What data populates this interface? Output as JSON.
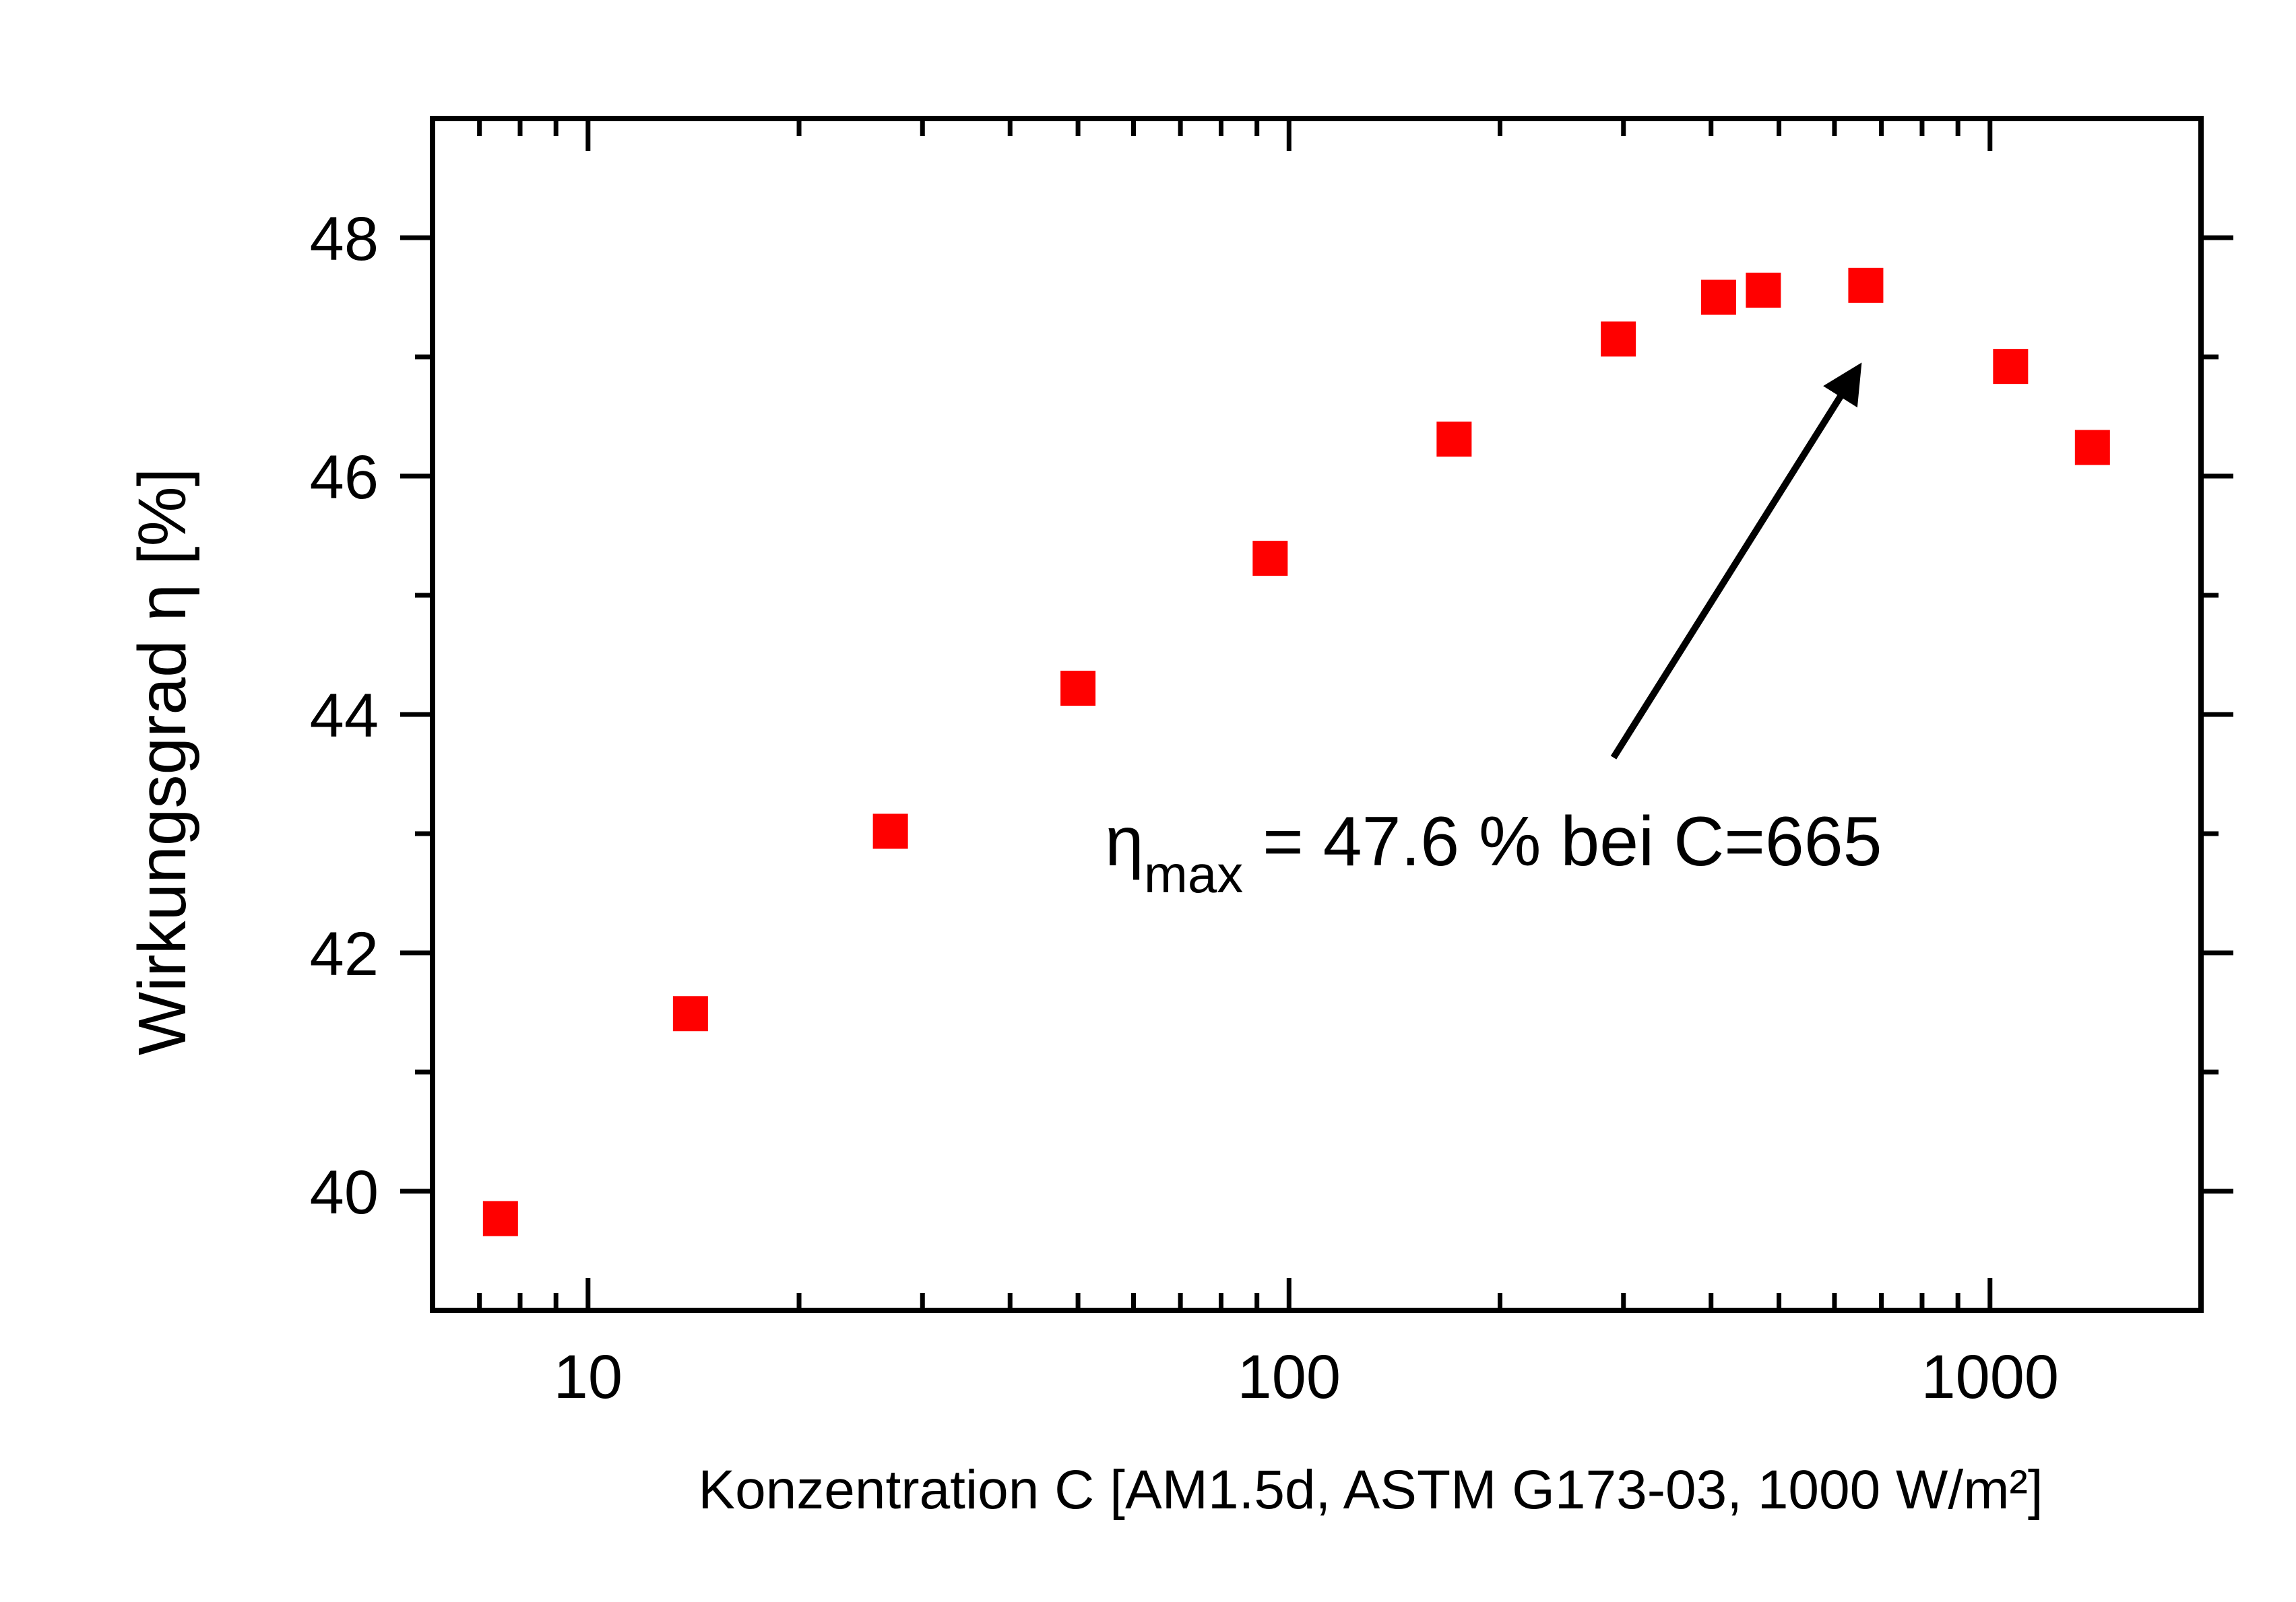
{
  "chart_data": {
    "type": "scatter",
    "title": "",
    "xlabel": "Konzentration C [AM1.5d, ASTM G173-03, 1000 W/m²]",
    "ylabel": "Wirkungsgrad η [%]",
    "xscale": "log",
    "xlim": [
      6,
      2000
    ],
    "ylim": [
      39,
      49
    ],
    "x_ticks": [
      10,
      100,
      1000
    ],
    "x_tick_labels": [
      "10",
      "100",
      "1000"
    ],
    "y_ticks": [
      40,
      42,
      44,
      46,
      48
    ],
    "y_tick_labels": [
      "40",
      "42",
      "44",
      "46",
      "48"
    ],
    "grid": false,
    "legend": "none",
    "marker": "square",
    "marker_color": "#ff0000",
    "series": [
      {
        "x": [
          7.5,
          14,
          27,
          50,
          94,
          172,
          295,
          410,
          475,
          665,
          1070,
          1400
        ],
        "y": [
          39.77,
          41.49,
          43.02,
          44.22,
          45.31,
          46.31,
          47.15,
          47.5,
          47.56,
          47.6,
          46.92,
          46.24
        ]
      }
    ],
    "annotation": {
      "symbol": "η",
      "subscript": "max",
      "text": " = 47.6 % bei C=665",
      "arrow_to": [
        665,
        47.6
      ]
    }
  }
}
